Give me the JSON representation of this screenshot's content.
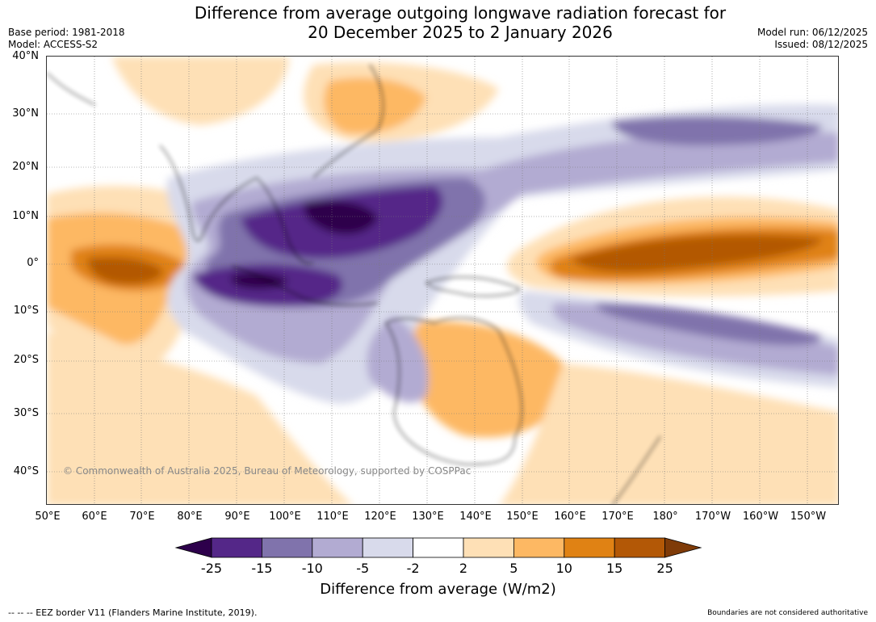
{
  "header": {
    "title_line1": "Difference from average outgoing longwave radiation forecast for",
    "title_line2": "20 December 2025 to 2 January 2026",
    "base_period": "Base period: 1981-2018",
    "model": "Model: ACCESS-S2",
    "model_run": "Model run: 06/12/2025",
    "issued": "Issued: 08/12/2025"
  },
  "map": {
    "copyright": "© Commonwealth of Australia 2025, Bureau of Meteorology, supported by COSPPac",
    "lat_labels": [
      "40°N",
      "30°N",
      "20°N",
      "10°N",
      "0°",
      "10°S",
      "20°S",
      "30°S",
      "40°S"
    ],
    "lon_labels": [
      "50°E",
      "60°E",
      "70°E",
      "80°E",
      "90°E",
      "100°E",
      "110°E",
      "120°E",
      "130°E",
      "140°E",
      "150°E",
      "160°E",
      "170°E",
      "180°",
      "170°W",
      "160°W",
      "150°W"
    ]
  },
  "legend": {
    "ticks": [
      "-25",
      "-15",
      "-10",
      "-5",
      "-2",
      "2",
      "5",
      "10",
      "15",
      "25"
    ],
    "title": "Difference from average (W/m2)",
    "colors": [
      "#2d004b",
      "#542788",
      "#8073ac",
      "#b2abd2",
      "#d8daeb",
      "#ffffff",
      "#fee0b6",
      "#fdb863",
      "#e08214",
      "#b35806",
      "#7f3b08"
    ]
  },
  "footer": {
    "eez": "--  --  -- EEZ border V11 (Flanders Marine Institute, 2019).",
    "disclaimer": "Boundaries are not considered authoritative"
  }
}
